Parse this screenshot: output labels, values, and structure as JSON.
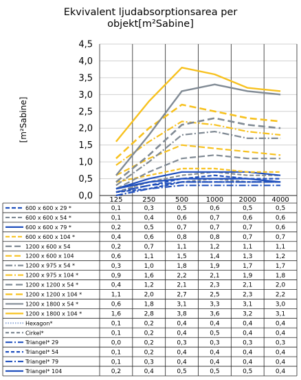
{
  "chart_data": {
    "type": "line",
    "title_lines": [
      "Ekvivalent ljudabsorptionsarea per",
      "objekt[m²Sabine]"
    ],
    "ylabel": "[m²Sabine]",
    "xlabel": "",
    "categories": [
      "125",
      "250",
      "500",
      "1000",
      "2000",
      "4000"
    ],
    "ylim": [
      0,
      4.5
    ],
    "yticks": [
      "0,0",
      "0,5",
      "1,0",
      "1,5",
      "2,0",
      "2,5",
      "3,0",
      "3,5",
      "4,0",
      "4,5"
    ],
    "grid": "horizontal",
    "legend": "data table below chart",
    "series": [
      {
        "name": "600 x 600 x 29 *",
        "values": [
          0.1,
          0.3,
          0.5,
          0.6,
          0.5,
          0.5
        ],
        "labels": [
          "0,1",
          "0,3",
          "0,5",
          "0,6",
          "0,5",
          "0,5"
        ],
        "color": "#1f4fbd",
        "dash": "6 3",
        "width": 2.2
      },
      {
        "name": "600 x 600 x 54 *",
        "values": [
          0.1,
          0.4,
          0.6,
          0.7,
          0.6,
          0.6
        ],
        "labels": [
          "0,1",
          "0,4",
          "0,6",
          "0,7",
          "0,6",
          "0,6"
        ],
        "color": "#808a94",
        "dash": "6 3",
        "width": 2.2
      },
      {
        "name": "600 x 600 x 79 *",
        "values": [
          0.2,
          0.5,
          0.7,
          0.7,
          0.7,
          0.6
        ],
        "labels": [
          "0,2",
          "0,5",
          "0,7",
          "0,7",
          "0,7",
          "0,6"
        ],
        "color": "#1f4fbd",
        "dash": "",
        "width": 2.2
      },
      {
        "name": "600 x 600 x 104 *",
        "values": [
          0.4,
          0.6,
          0.8,
          0.8,
          0.7,
          0.7
        ],
        "labels": [
          "0,4",
          "0,6",
          "0,8",
          "0,8",
          "0,7",
          "0,7"
        ],
        "color": "#f7c11e",
        "dash": "6 3",
        "width": 2.2
      },
      {
        "name": "1200 x 600 x 54",
        "values": [
          0.2,
          0.7,
          1.1,
          1.2,
          1.1,
          1.1
        ],
        "labels": [
          "0,2",
          "0,7",
          "1,1",
          "1,2",
          "1,1",
          "1,1"
        ],
        "color": "#808a94",
        "dash": "9 4",
        "width": 2.2
      },
      {
        "name": "1200 x 600 x 104",
        "values": [
          0.6,
          1.1,
          1.5,
          1.4,
          1.3,
          1.2
        ],
        "labels": [
          "0,6",
          "1,1",
          "1,5",
          "1,4",
          "1,3",
          "1,2"
        ],
        "color": "#f7c11e",
        "dash": "9 4",
        "width": 2.2
      },
      {
        "name": "1200 x 975 x 54 *",
        "values": [
          0.3,
          1.0,
          1.8,
          1.9,
          1.7,
          1.7
        ],
        "labels": [
          "0,3",
          "1,0",
          "1,8",
          "1,9",
          "1,7",
          "1,7"
        ],
        "color": "#808a94",
        "dash": "10 3 2 3",
        "width": 2.2
      },
      {
        "name": "1200 x 975 x 104 *",
        "values": [
          0.9,
          1.6,
          2.2,
          2.1,
          1.9,
          1.8
        ],
        "labels": [
          "0,9",
          "1,6",
          "2,2",
          "2,1",
          "1,9",
          "1,8"
        ],
        "color": "#f7c11e",
        "dash": "10 3 2 3",
        "width": 2.2
      },
      {
        "name": "1200 x 1200 x 54 *",
        "values": [
          0.4,
          1.2,
          2.1,
          2.3,
          2.1,
          2.0
        ],
        "labels": [
          "0,4",
          "1,2",
          "2,1",
          "2,3",
          "2,1",
          "2,0"
        ],
        "color": "#808a94",
        "dash": "10 5",
        "width": 2.6
      },
      {
        "name": "1200 x 1200 x 104 *",
        "values": [
          1.1,
          2.0,
          2.7,
          2.5,
          2.3,
          2.2
        ],
        "labels": [
          "1,1",
          "2,0",
          "2,7",
          "2,5",
          "2,3",
          "2,2"
        ],
        "color": "#f7c11e",
        "dash": "10 5",
        "width": 2.6
      },
      {
        "name": "1200 x 1800 x 54 *",
        "values": [
          0.6,
          1.8,
          3.1,
          3.3,
          3.1,
          3.0
        ],
        "labels": [
          "0,6",
          "1,8",
          "3,1",
          "3,3",
          "3,1",
          "3,0"
        ],
        "color": "#808a94",
        "dash": "",
        "width": 2.4
      },
      {
        "name": "1200 x 1800 x 104 *",
        "values": [
          1.6,
          2.8,
          3.8,
          3.6,
          3.2,
          3.1
        ],
        "labels": [
          "1,6",
          "2,8",
          "3,8",
          "3,6",
          "3,2",
          "3,1"
        ],
        "color": "#f7c11e",
        "dash": "",
        "width": 2.4
      },
      {
        "name": "Hexagon*",
        "values": [
          0.1,
          0.2,
          0.4,
          0.4,
          0.4,
          0.4
        ],
        "labels": [
          "0,1",
          "0,2",
          "0,4",
          "0,4",
          "0,4",
          "0,4"
        ],
        "color": "#8fa8d6",
        "dash": "1.5 2",
        "width": 2.2
      },
      {
        "name": "Cirkel*",
        "values": [
          0.1,
          0.2,
          0.4,
          0.5,
          0.4,
          0.4
        ],
        "labels": [
          "0,1",
          "0,2",
          "0,4",
          "0,5",
          "0,4",
          "0,4"
        ],
        "color": "#808a94",
        "dash": "5 3",
        "width": 2.2
      },
      {
        "name": "Triangel* 29",
        "values": [
          0.0,
          0.2,
          0.3,
          0.3,
          0.3,
          0.3
        ],
        "labels": [
          "0,0",
          "0,2",
          "0,3",
          "0,3",
          "0,3",
          "0,3"
        ],
        "color": "#1f4fbd",
        "dash": "10 3 2 3",
        "width": 2.2
      },
      {
        "name": "Triangel* 54",
        "values": [
          0.1,
          0.2,
          0.4,
          0.4,
          0.4,
          0.4
        ],
        "labels": [
          "0,1",
          "0,2",
          "0,4",
          "0,4",
          "0,4",
          "0,4"
        ],
        "color": "#1f4fbd",
        "dash": "5 3",
        "width": 2.2
      },
      {
        "name": "Triangel* 79",
        "values": [
          0.1,
          0.3,
          0.4,
          0.4,
          0.4,
          0.4
        ],
        "labels": [
          "0,1",
          "0,3",
          "0,4",
          "0,4",
          "0,4",
          "0,4"
        ],
        "color": "#1f4fbd",
        "dash": "10 3 2 3",
        "width": 2.2
      },
      {
        "name": "Triangel* 104",
        "values": [
          0.2,
          0.4,
          0.5,
          0.5,
          0.5,
          0.4
        ],
        "labels": [
          "0,2",
          "0,4",
          "0,5",
          "0,5",
          "0,5",
          "0,4"
        ],
        "color": "#1f4fbd",
        "dash": "",
        "width": 2.4
      }
    ]
  }
}
